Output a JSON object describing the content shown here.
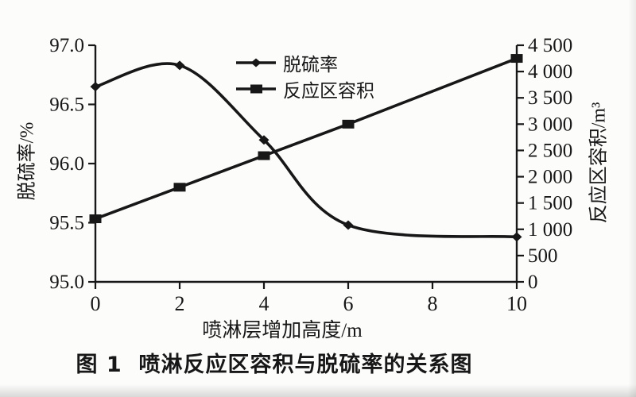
{
  "figure": {
    "caption": "图 1  喷淋反应区容积与脱硫率的关系图",
    "x_axis": {
      "title": "喷淋层增加高度/m",
      "tick_labels": [
        "0",
        "2",
        "4",
        "6",
        "8",
        "10"
      ]
    },
    "y_left_axis": {
      "title": "脱硫率/%",
      "tick_labels": [
        "95.0",
        "95.5",
        "96.0",
        "96.5",
        "97.0"
      ]
    },
    "y_right_axis": {
      "title": "反应区容积/m³",
      "tick_labels": [
        "0",
        "500",
        "1 000",
        "1 500",
        "2 000",
        "2 500",
        "3 000",
        "3 500",
        "4 000",
        "4 500"
      ]
    },
    "legend": {
      "items": [
        {
          "label": "脱硫率",
          "marker": "diamond"
        },
        {
          "label": "反应区容积",
          "marker": "square"
        }
      ]
    }
  },
  "chart_data": {
    "type": "line",
    "title": "图 1 喷淋反应区容积与脱硫率的关系图",
    "xlabel": "喷淋层增加高度/m",
    "ylabel_left": "脱硫率/%",
    "ylabel_right": "反应区容积/m³",
    "x_range": [
      0,
      10
    ],
    "y_left_range": [
      95.0,
      97.0
    ],
    "y_right_range": [
      0,
      4500
    ],
    "x": [
      0,
      2,
      4,
      6,
      10
    ],
    "series": [
      {
        "name": "脱硫率",
        "axis": "left",
        "marker": "diamond",
        "smooth": true,
        "values": [
          96.65,
          96.83,
          96.2,
          95.48,
          95.38
        ]
      },
      {
        "name": "反应区容积",
        "axis": "right",
        "marker": "square",
        "smooth": false,
        "values": [
          1200,
          1800,
          2400,
          3000,
          4250
        ]
      }
    ],
    "grid": false,
    "legend_position": "upper-center",
    "line_color": "#171717"
  }
}
